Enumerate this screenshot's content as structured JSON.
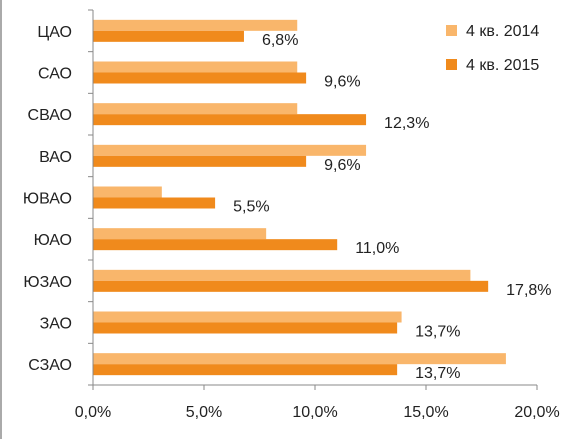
{
  "chart_data": {
    "type": "bar",
    "orientation": "horizontal",
    "categories": [
      "ЦАО",
      "САО",
      "СВАО",
      "ВАО",
      "ЮВАО",
      "ЮАО",
      "ЮЗАО",
      "ЗАО",
      "СЗАО"
    ],
    "series": [
      {
        "name": "4 кв. 2014",
        "color": "#F9B66B",
        "values": [
          9.2,
          9.2,
          9.2,
          12.3,
          3.1,
          7.8,
          17.0,
          13.9,
          18.6
        ]
      },
      {
        "name": "4 кв. 2015",
        "color": "#F08A1C",
        "values": [
          6.8,
          9.6,
          12.3,
          9.6,
          5.5,
          11.0,
          17.8,
          13.7,
          13.7
        ],
        "data_labels": [
          "6,8%",
          "9,6%",
          "12,3%",
          "9,6%",
          "5,5%",
          "11,0%",
          "17,8%",
          "13,7%",
          "13,7%"
        ]
      }
    ],
    "xlim": [
      0,
      20
    ],
    "xticks": [
      0,
      5,
      10,
      15,
      20
    ],
    "xtick_labels": [
      "0,0%",
      "5,0%",
      "10,0%",
      "15,0%",
      "20,0%"
    ],
    "title": "",
    "xlabel": "",
    "ylabel": "",
    "legend_position": "top-right",
    "grid": false
  }
}
